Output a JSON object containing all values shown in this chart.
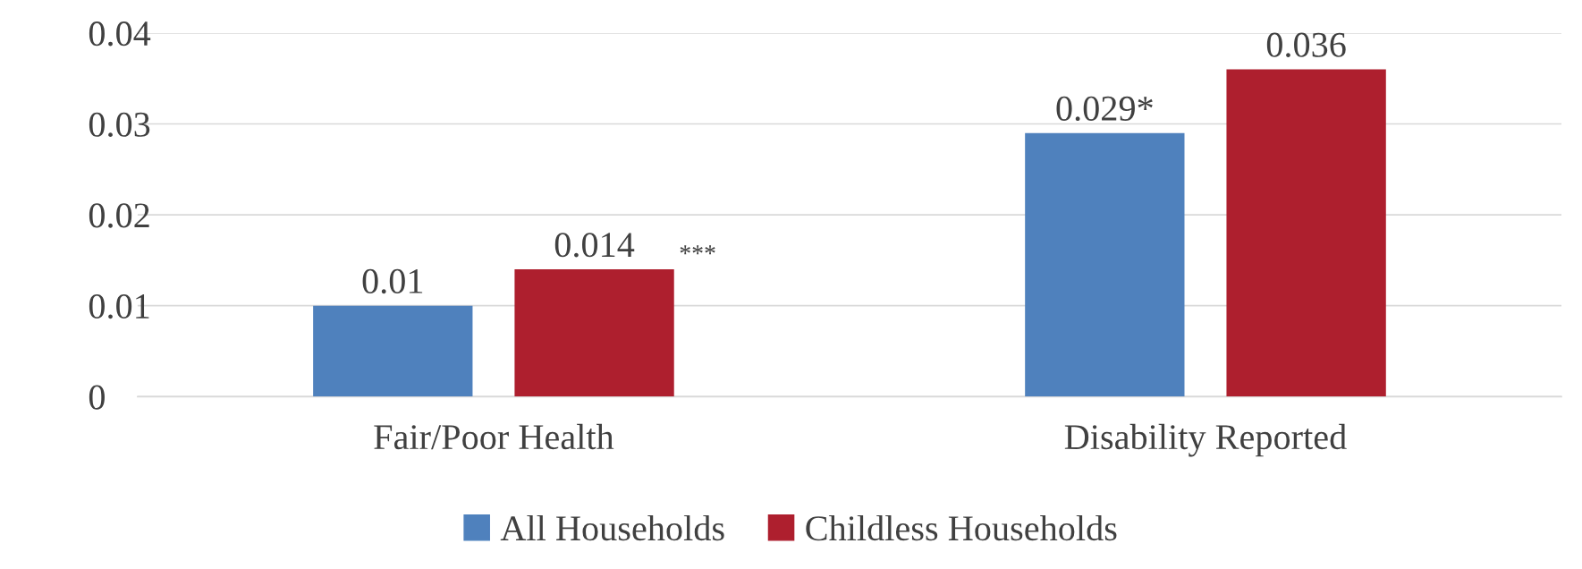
{
  "chart_data": {
    "type": "bar",
    "categories": [
      "Fair/Poor Health",
      "Disability Reported"
    ],
    "series": [
      {
        "name": "All Households",
        "color": "#4f81bd",
        "values": [
          0.01,
          0.029
        ],
        "value_labels": [
          "0.01",
          "0.029*"
        ]
      },
      {
        "name": "Childless Households",
        "color": "#ae1f2e",
        "values": [
          0.014,
          0.036
        ],
        "value_labels": [
          "0.014",
          "0.036"
        ]
      }
    ],
    "annotations": [
      "***"
    ],
    "ylim": [
      0,
      0.04
    ],
    "yticks": [
      {
        "value": 0,
        "label": "0"
      },
      0.01,
      0.02,
      0.03,
      0.04
    ],
    "grid": "y",
    "legend": "bottom"
  }
}
